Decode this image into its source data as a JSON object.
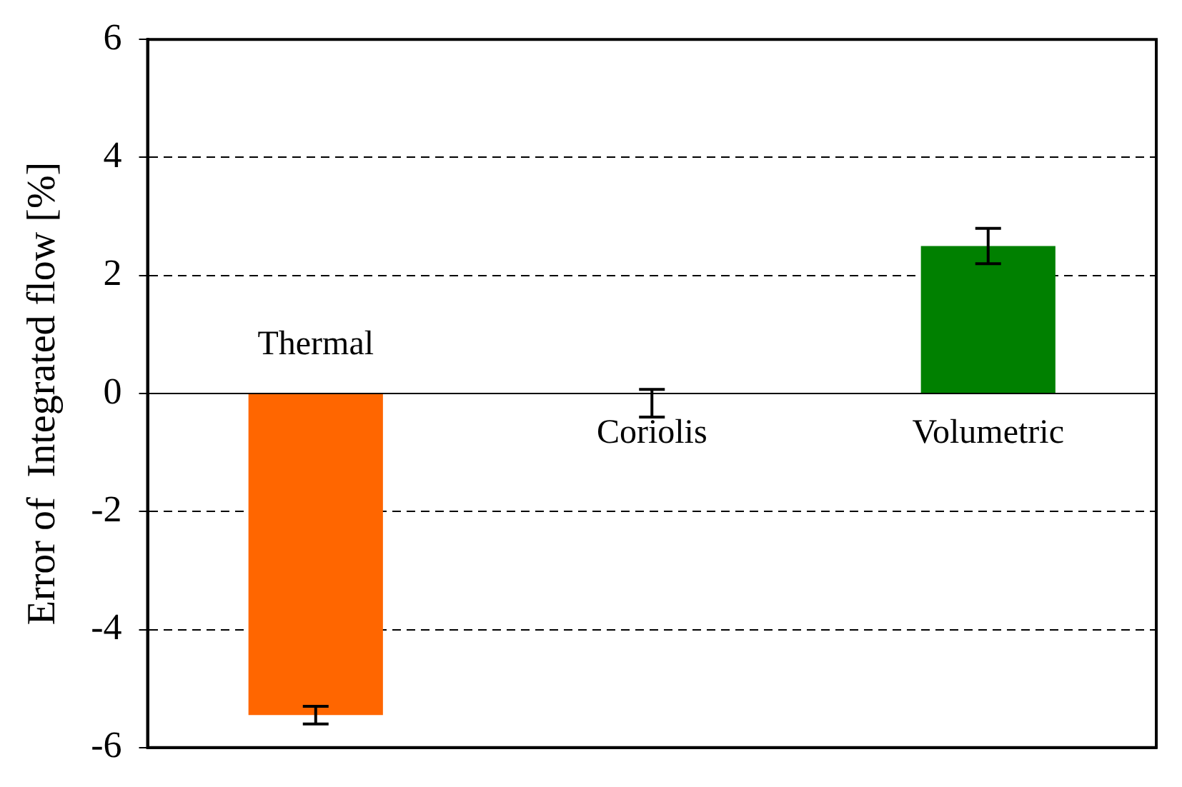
{
  "chart_data": {
    "type": "bar",
    "ylabel": "Error of  Integrated flow [%]",
    "categories": [
      "Thermal",
      "Coriolis",
      "Volumetric"
    ],
    "values": [
      -5.45,
      0,
      2.5
    ],
    "colors": [
      "#ff6600",
      "#ffffff",
      "#008000"
    ],
    "errors": [
      0.15,
      [
        -0.4,
        0.07
      ],
      0.3
    ],
    "ylim": [
      -6,
      6
    ],
    "yticks": [
      -6,
      -4,
      -2,
      0,
      2,
      4,
      6
    ],
    "grid": "y",
    "line_style": "dashed",
    "tick_labels": "y"
  }
}
